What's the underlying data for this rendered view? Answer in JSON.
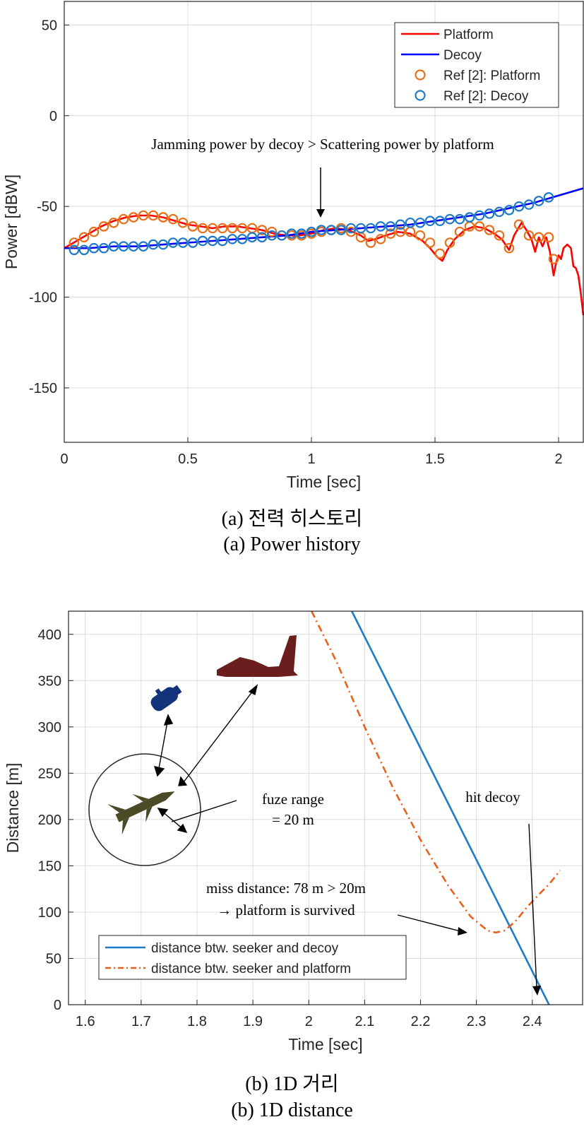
{
  "chart_data": [
    {
      "type": "line",
      "xlabel": "Time [sec]",
      "ylabel": "Power [dBW]",
      "xlim": [
        0,
        2.1
      ],
      "ylim": [
        -180,
        63
      ],
      "xticks": [
        0,
        0.5,
        1,
        1.5,
        2
      ],
      "xtick_labels": [
        "0",
        "0.5",
        "1",
        "1.5",
        "2"
      ],
      "yticks": [
        50,
        0,
        -50,
        -100,
        -150
      ],
      "ytick_labels": [
        "50",
        "0",
        "-50",
        "-100",
        "-150"
      ],
      "grid": true,
      "legend_position": "top-right",
      "series": [
        {
          "name": "Platform",
          "style": "solid",
          "color": "#ff0000",
          "x": [
            0,
            0.05,
            0.1,
            0.15,
            0.2,
            0.25,
            0.3,
            0.35,
            0.4,
            0.45,
            0.5,
            0.55,
            0.6,
            0.65,
            0.7,
            0.75,
            0.8,
            0.85,
            0.9,
            0.95,
            1.0,
            1.05,
            1.1,
            1.15,
            1.2,
            1.23,
            1.26,
            1.3,
            1.35,
            1.4,
            1.45,
            1.48,
            1.51,
            1.53,
            1.55,
            1.58,
            1.62,
            1.66,
            1.7,
            1.74,
            1.77,
            1.8,
            1.82,
            1.85,
            1.87,
            1.89,
            1.905,
            1.92,
            1.935,
            1.95,
            1.965,
            1.98,
            1.99,
            2.0,
            2.01,
            2.02,
            2.035,
            2.05,
            2.06,
            2.07,
            2.08,
            2.09,
            2.1
          ],
          "y": [
            -73,
            -69,
            -65,
            -61,
            -58,
            -56,
            -55,
            -55,
            -56,
            -58,
            -60,
            -61,
            -62,
            -61,
            -61,
            -62,
            -63,
            -65,
            -66,
            -66,
            -65,
            -63,
            -62,
            -63,
            -66,
            -69,
            -68,
            -66,
            -64,
            -65,
            -69,
            -73,
            -78,
            -80,
            -74,
            -68,
            -63,
            -61,
            -62,
            -65,
            -68,
            -74,
            -66,
            -59,
            -63,
            -68,
            -75,
            -67,
            -72,
            -67,
            -75,
            -88,
            -81,
            -77,
            -79,
            -73,
            -71,
            -73,
            -83,
            -84,
            -88,
            -98,
            -110
          ]
        },
        {
          "name": "Decoy",
          "style": "solid",
          "color": "#0000ff",
          "x": [
            0,
            0.1,
            0.2,
            0.3,
            0.4,
            0.5,
            0.6,
            0.7,
            0.8,
            0.9,
            1.0,
            1.1,
            1.2,
            1.3,
            1.4,
            1.5,
            1.6,
            1.7,
            1.8,
            1.9,
            2.0,
            2.1
          ],
          "y": [
            -73,
            -73,
            -72,
            -72,
            -71,
            -70,
            -69,
            -68,
            -67,
            -66,
            -64,
            -63,
            -62,
            -61,
            -60,
            -58,
            -56,
            -54,
            -51,
            -48,
            -44,
            -40
          ]
        },
        {
          "name": "Ref [2]: Platform",
          "style": "markers",
          "color": "#e8701a",
          "x": [
            0.04,
            0.08,
            0.12,
            0.16,
            0.2,
            0.24,
            0.28,
            0.32,
            0.36,
            0.4,
            0.44,
            0.48,
            0.52,
            0.56,
            0.6,
            0.64,
            0.68,
            0.72,
            0.76,
            0.8,
            0.84,
            0.88,
            0.92,
            0.96,
            1.0,
            1.04,
            1.08,
            1.12,
            1.16,
            1.2,
            1.24,
            1.28,
            1.32,
            1.36,
            1.4,
            1.44,
            1.48,
            1.52,
            1.56,
            1.6,
            1.64,
            1.68,
            1.72,
            1.76,
            1.8,
            1.84,
            1.88,
            1.92,
            1.96,
            1.98
          ],
          "y": [
            -70,
            -67,
            -64,
            -61,
            -59,
            -57,
            -56,
            -55,
            -55,
            -56,
            -57,
            -59,
            -61,
            -62,
            -62,
            -62,
            -62,
            -62,
            -62,
            -63,
            -64,
            -66,
            -66,
            -66,
            -65,
            -64,
            -63,
            -62,
            -64,
            -67,
            -70,
            -68,
            -65,
            -64,
            -64,
            -66,
            -70,
            -76,
            -70,
            -64,
            -61,
            -61,
            -63,
            -66,
            -73,
            -60,
            -66,
            -67,
            -67,
            -79
          ]
        },
        {
          "name": "Ref [2]: Decoy",
          "style": "markers",
          "color": "#1f7bc8",
          "x": [
            0.04,
            0.08,
            0.12,
            0.16,
            0.2,
            0.24,
            0.28,
            0.32,
            0.36,
            0.4,
            0.44,
            0.48,
            0.52,
            0.56,
            0.6,
            0.64,
            0.68,
            0.72,
            0.76,
            0.8,
            0.84,
            0.88,
            0.92,
            0.96,
            1.0,
            1.04,
            1.08,
            1.12,
            1.16,
            1.2,
            1.24,
            1.28,
            1.32,
            1.36,
            1.4,
            1.44,
            1.48,
            1.52,
            1.56,
            1.6,
            1.64,
            1.68,
            1.72,
            1.76,
            1.8,
            1.84,
            1.88,
            1.92,
            1.96
          ],
          "y": [
            -74,
            -74,
            -73,
            -73,
            -72,
            -72,
            -72,
            -72,
            -71,
            -71,
            -70,
            -70,
            -70,
            -69,
            -69,
            -69,
            -68,
            -68,
            -67,
            -67,
            -66,
            -66,
            -65,
            -65,
            -64,
            -63,
            -63,
            -63,
            -62,
            -62,
            -62,
            -61,
            -61,
            -60,
            -59,
            -59,
            -58,
            -58,
            -57,
            -57,
            -56,
            -55,
            -54,
            -53,
            -52,
            -50,
            -49,
            -47,
            -45
          ]
        }
      ],
      "annotations": [
        {
          "text": "Jamming power by decoy > Scattering power by platform"
        }
      ]
    },
    {
      "type": "line",
      "xlabel": "Time [sec]",
      "ylabel": "Distance [m]",
      "xlim": [
        1.57,
        2.49
      ],
      "ylim": [
        0,
        425
      ],
      "xticks": [
        1.6,
        1.7,
        1.8,
        1.9,
        2.0,
        2.1,
        2.2,
        2.3,
        2.4
      ],
      "xtick_labels": [
        "1.6",
        "1.7",
        "1.8",
        "1.9",
        "2",
        "2.1",
        "2.2",
        "2.3",
        "2.4"
      ],
      "yticks": [
        0,
        50,
        100,
        150,
        200,
        250,
        300,
        350,
        400
      ],
      "ytick_labels": [
        "0",
        "50",
        "100",
        "150",
        "200",
        "250",
        "300",
        "350",
        "400"
      ],
      "grid": true,
      "legend_position": "bottom-left",
      "series": [
        {
          "name": "distance btw. seeker and decoy",
          "style": "solid",
          "color": "#1f7bc8",
          "x": [
            2.077,
            2.43
          ],
          "y": [
            425,
            0
          ]
        },
        {
          "name": "distance btw. seeker and platform",
          "style": "dashdot",
          "color": "#e8601c",
          "x": [
            2.005,
            2.05,
            2.1,
            2.15,
            2.2,
            2.25,
            2.29,
            2.32,
            2.335,
            2.35,
            2.37,
            2.39,
            2.41,
            2.43,
            2.45
          ],
          "y": [
            425,
            370,
            300,
            235,
            178,
            128,
            95,
            80,
            78,
            80,
            90,
            105,
            118,
            130,
            145
          ]
        }
      ],
      "annotations": [
        {
          "text": "fuze range"
        },
        {
          "text": "= 20 m"
        },
        {
          "text": "hit decoy"
        },
        {
          "text": "miss distance: 78 m > 20m"
        },
        {
          "text": "→ platform is survived"
        }
      ]
    }
  ],
  "captions": {
    "a_korean": "(a) 전력 히스토리",
    "a_english": "(a) Power history",
    "b_korean": "(b) 1D 거리",
    "b_english": "(b) 1D distance"
  }
}
